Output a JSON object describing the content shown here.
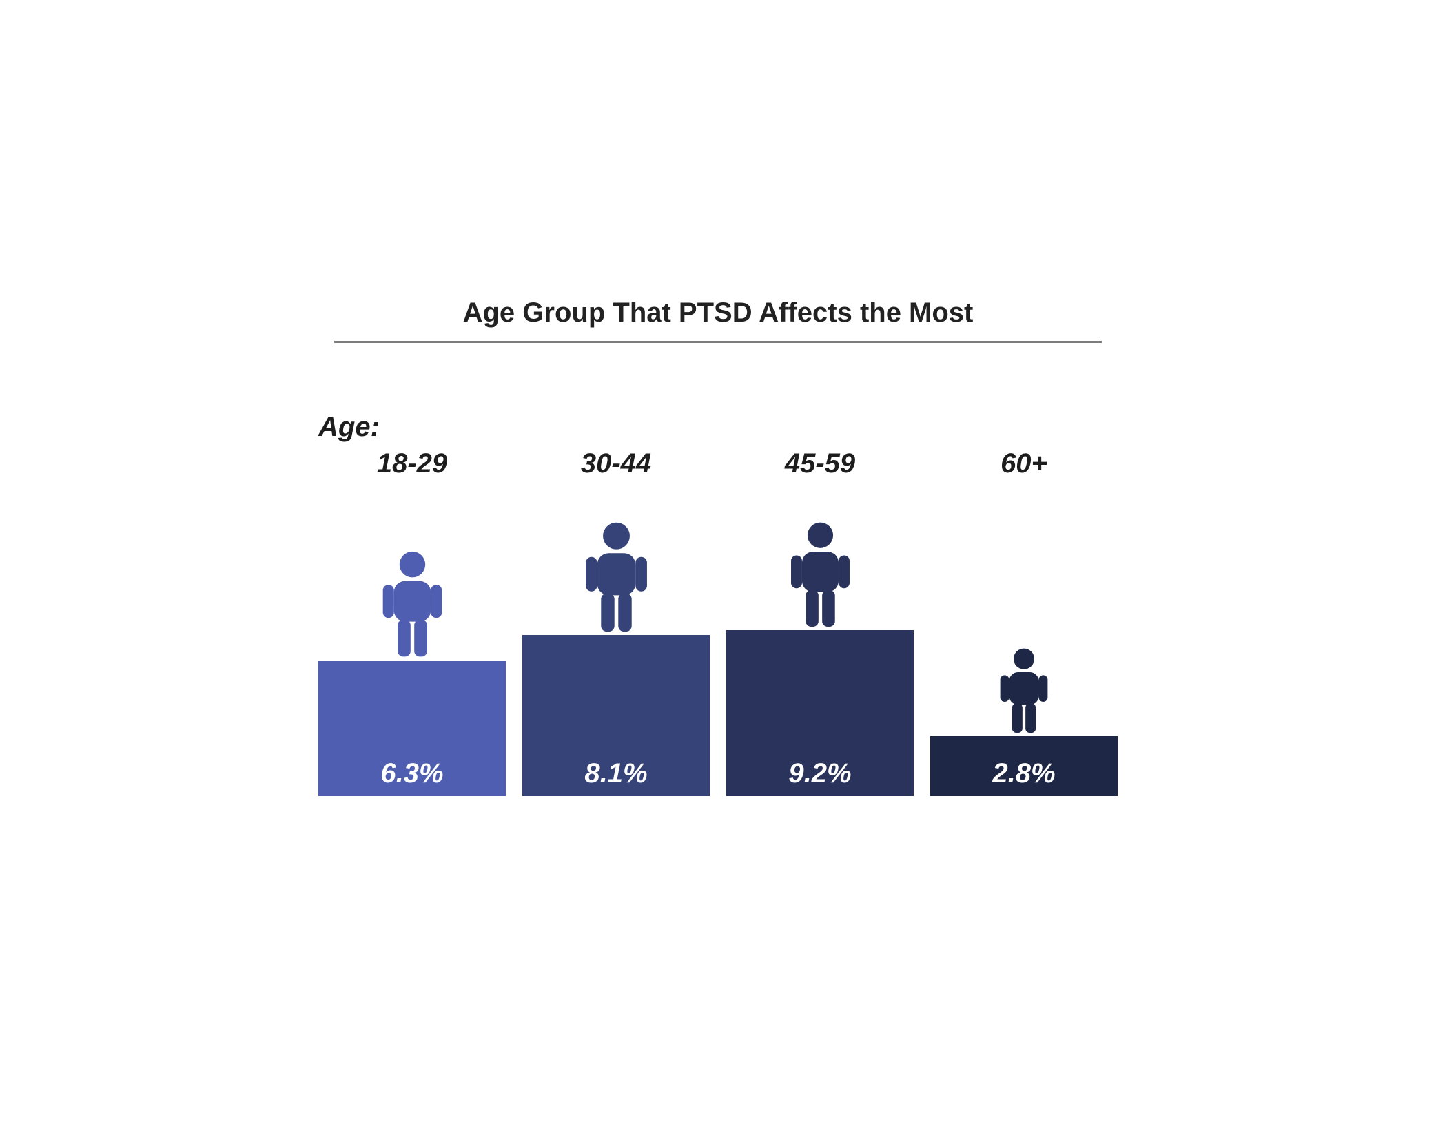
{
  "chart": {
    "type": "bar",
    "title": "Age Group That PTSD Affects the Most",
    "title_fontsize": 40,
    "title_color": "#222222",
    "rule_color": "#7d7d7d",
    "background_color": "#ffffff",
    "age_prefix": "Age:",
    "category_fontsize": 40,
    "value_fontsize": 40,
    "value_color": "#ffffff",
    "max_bar_height": 290,
    "bar_scale_per_pct": 31,
    "person_min_h": 130,
    "person_max_h": 190,
    "bars": [
      {
        "category": "18-29",
        "value_pct": 6.3,
        "value_label": "6.3%",
        "color": "#4f5eb0"
      },
      {
        "category": "30-44",
        "value_pct": 8.1,
        "value_label": "8.1%",
        "color": "#364379"
      },
      {
        "category": "45-59",
        "value_pct": 9.2,
        "value_label": "9.2%",
        "color": "#2a335b"
      },
      {
        "category": "60+",
        "value_pct": 2.8,
        "value_label": "2.8%",
        "color": "#1e2745"
      }
    ]
  }
}
